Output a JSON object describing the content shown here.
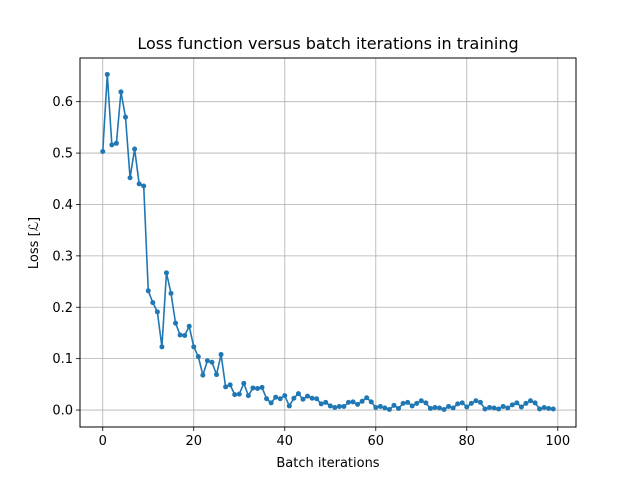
{
  "chart_data": {
    "type": "line",
    "title": "Loss function versus batch iterations in training",
    "xlabel": "Batch iterations",
    "ylabel": "Loss [ℒ]",
    "xlim": [
      -5,
      104
    ],
    "ylim": [
      -0.033,
      0.685
    ],
    "xticks": [
      0,
      20,
      40,
      60,
      80,
      100
    ],
    "yticks": [
      0.0,
      0.1,
      0.2,
      0.3,
      0.4,
      0.5,
      0.6
    ],
    "xtick_labels": [
      "0",
      "20",
      "40",
      "60",
      "80",
      "100"
    ],
    "ytick_labels": [
      "0.0",
      "0.1",
      "0.2",
      "0.3",
      "0.4",
      "0.5",
      "0.6"
    ],
    "grid": true,
    "color": "#1f77b4",
    "marker": "circle",
    "series": [
      {
        "x": [
          0,
          1,
          2,
          3,
          4,
          5,
          6,
          7,
          8,
          9,
          10,
          11,
          12,
          13,
          14,
          15,
          16,
          17,
          18,
          19,
          20,
          21,
          22,
          23,
          24,
          25,
          26,
          27,
          28,
          29,
          30,
          31,
          32,
          33,
          34,
          35,
          36,
          37,
          38,
          39,
          40,
          41,
          42,
          43,
          44,
          45,
          46,
          47,
          48,
          49,
          50,
          51,
          52,
          53,
          54,
          55,
          56,
          57,
          58,
          59,
          60,
          61,
          62,
          63,
          64,
          65,
          66,
          67,
          68,
          69,
          70,
          71,
          72,
          73,
          74,
          75,
          76,
          77,
          78,
          79,
          80,
          81,
          82,
          83,
          84,
          85,
          86,
          87,
          88,
          89,
          90,
          91,
          92,
          93,
          94,
          95,
          96,
          97,
          98,
          99
        ],
        "y": [
          0.503,
          0.653,
          0.516,
          0.519,
          0.619,
          0.57,
          0.452,
          0.508,
          0.44,
          0.436,
          0.232,
          0.209,
          0.191,
          0.123,
          0.267,
          0.227,
          0.169,
          0.146,
          0.145,
          0.163,
          0.123,
          0.104,
          0.068,
          0.096,
          0.093,
          0.069,
          0.108,
          0.045,
          0.049,
          0.03,
          0.031,
          0.052,
          0.028,
          0.043,
          0.042,
          0.044,
          0.022,
          0.014,
          0.025,
          0.022,
          0.028,
          0.008,
          0.023,
          0.032,
          0.021,
          0.027,
          0.023,
          0.022,
          0.012,
          0.015,
          0.008,
          0.005,
          0.007,
          0.007,
          0.015,
          0.016,
          0.011,
          0.017,
          0.024,
          0.016,
          0.005,
          0.007,
          0.004,
          0.001,
          0.009,
          0.003,
          0.013,
          0.015,
          0.008,
          0.013,
          0.018,
          0.014,
          0.003,
          0.005,
          0.004,
          0.001,
          0.007,
          0.004,
          0.012,
          0.014,
          0.006,
          0.013,
          0.018,
          0.015,
          0.002,
          0.005,
          0.004,
          0.002,
          0.007,
          0.004,
          0.01,
          0.014,
          0.006,
          0.013,
          0.018,
          0.014,
          0.002,
          0.005,
          0.003,
          0.002
        ]
      }
    ]
  }
}
